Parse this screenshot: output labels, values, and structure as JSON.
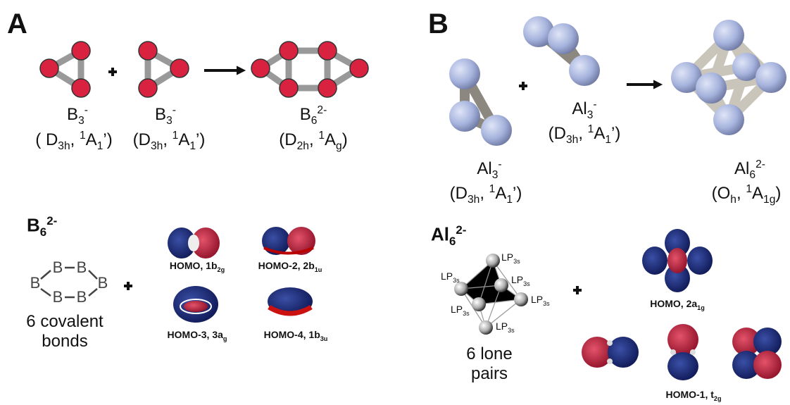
{
  "panel_a": {
    "label": "A",
    "species": [
      {
        "formula": [
          {
            "text": "B"
          },
          {
            "sub": "3"
          },
          {
            "sup": "-"
          }
        ],
        "symmetry": [
          {
            "text": "( D"
          },
          {
            "sub": "3h"
          },
          {
            "text": ", "
          },
          {
            "sup": "1"
          },
          {
            "text": "A"
          },
          {
            "sub": "1"
          },
          {
            "text": "’)"
          }
        ]
      },
      {
        "formula": [
          {
            "text": "B"
          },
          {
            "sub": "3"
          },
          {
            "sup": "-"
          }
        ],
        "symmetry": [
          {
            "text": "(D"
          },
          {
            "sub": "3h"
          },
          {
            "text": ", "
          },
          {
            "sup": "1"
          },
          {
            "text": "A"
          },
          {
            "sub": "1"
          },
          {
            "text": "’)"
          }
        ]
      },
      {
        "formula": [
          {
            "text": "B"
          },
          {
            "sub": "6"
          },
          {
            "sup": "2-"
          }
        ],
        "symmetry": [
          {
            "text": "(D"
          },
          {
            "sub": "2h"
          },
          {
            "text": ", "
          },
          {
            "sup": "1"
          },
          {
            "text": "A"
          },
          {
            "sub": "g"
          },
          {
            "text": ")"
          }
        ]
      }
    ],
    "lower": {
      "formula": [
        {
          "text": "B"
        },
        {
          "sub": "6"
        },
        {
          "sup": "2-"
        }
      ],
      "structure_atoms": [
        "B",
        "B",
        "B",
        "B",
        "B",
        "B"
      ],
      "caption": [
        "6 covalent",
        "bonds"
      ],
      "orbitals": [
        [
          {
            "text": "HOMO, 1b"
          },
          {
            "sub": "2g"
          }
        ],
        [
          {
            "text": "HOMO-2, 2b"
          },
          {
            "sub": "1u"
          }
        ],
        [
          {
            "text": "HOMO-3, 3a"
          },
          {
            "sub": "g"
          }
        ],
        [
          {
            "text": "HOMO-4, 1b"
          },
          {
            "sub": "3u"
          }
        ]
      ]
    }
  },
  "panel_b": {
    "label": "B",
    "species": [
      {
        "formula": [
          {
            "text": "Al"
          },
          {
            "sub": "3"
          },
          {
            "sup": "-"
          }
        ],
        "symmetry": [
          {
            "text": "(D"
          },
          {
            "sub": "3h"
          },
          {
            "text": ", "
          },
          {
            "sup": "1"
          },
          {
            "text": "A"
          },
          {
            "sub": "1"
          },
          {
            "text": "’)"
          }
        ]
      },
      {
        "formula": [
          {
            "text": "Al"
          },
          {
            "sub": "3"
          },
          {
            "sup": "-"
          }
        ],
        "symmetry": [
          {
            "text": "(D"
          },
          {
            "sub": "3h"
          },
          {
            "text": ", "
          },
          {
            "sup": "1"
          },
          {
            "text": "A"
          },
          {
            "sub": "1"
          },
          {
            "text": "’)"
          }
        ]
      },
      {
        "formula": [
          {
            "text": "Al"
          },
          {
            "sub": "6"
          },
          {
            "sup": "2-"
          }
        ],
        "symmetry": [
          {
            "text": "(O"
          },
          {
            "sub": "h"
          },
          {
            "text": ", "
          },
          {
            "sup": "1"
          },
          {
            "text": "A"
          },
          {
            "sub": "1g"
          },
          {
            "text": ")"
          }
        ]
      }
    ],
    "lower": {
      "formula": [
        {
          "text": "Al"
        },
        {
          "sub": "6"
        },
        {
          "sup": "2-"
        }
      ],
      "lone_pairs": [
        [
          {
            "text": "LP"
          },
          {
            "sub": "3s"
          }
        ],
        [
          {
            "text": "LP"
          },
          {
            "sub": "3s"
          }
        ],
        [
          {
            "text": "LP"
          },
          {
            "sub": "3s"
          }
        ],
        [
          {
            "text": "LP"
          },
          {
            "sub": "3s"
          }
        ],
        [
          {
            "text": "LP"
          },
          {
            "sub": "3s"
          }
        ],
        [
          {
            "text": "LP"
          },
          {
            "sub": "3s"
          }
        ]
      ],
      "caption": [
        "6 lone",
        "pairs"
      ],
      "orbitals": [
        [
          {
            "text": "HOMO, 2a"
          },
          {
            "sub": "1g"
          }
        ],
        [
          {
            "text": "HOMO-1, t"
          },
          {
            "sub": "2g"
          }
        ]
      ]
    }
  }
}
